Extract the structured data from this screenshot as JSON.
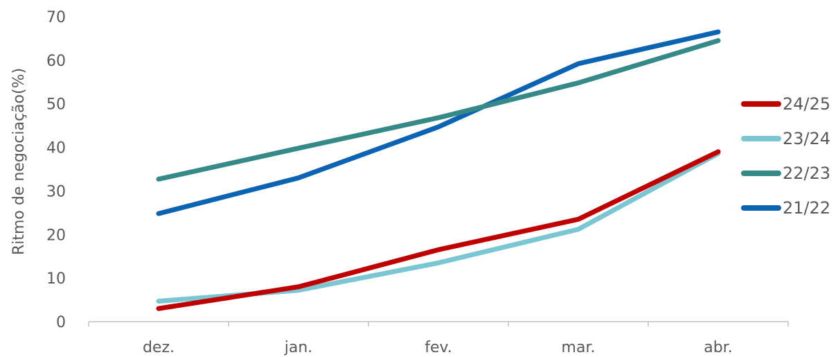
{
  "chart_data": {
    "type": "line",
    "title": "",
    "xlabel": "",
    "ylabel": "Ritmo de negociação(%)",
    "categories": [
      "dez.",
      "jan.",
      "fev.",
      "mar.",
      "abr."
    ],
    "ylim": [
      0,
      70
    ],
    "yticks": [
      0,
      10,
      20,
      30,
      40,
      50,
      60,
      70
    ],
    "grid": false,
    "legend_position": "right",
    "series": [
      {
        "name": "24/25",
        "color": "#c00000",
        "values": [
          3,
          8,
          16.5,
          23.5,
          39
        ]
      },
      {
        "name": "23/24",
        "color": "#7ac7d3",
        "values": [
          4.7,
          7.2,
          13.5,
          21.2,
          38.6
        ]
      },
      {
        "name": "22/23",
        "color": "#358a88",
        "values": [
          32.7,
          39.8,
          46.8,
          54.8,
          64.5
        ]
      },
      {
        "name": "21/22",
        "color": "#0b63b3",
        "values": [
          24.8,
          33,
          44.7,
          59.2,
          66.5
        ]
      }
    ]
  }
}
